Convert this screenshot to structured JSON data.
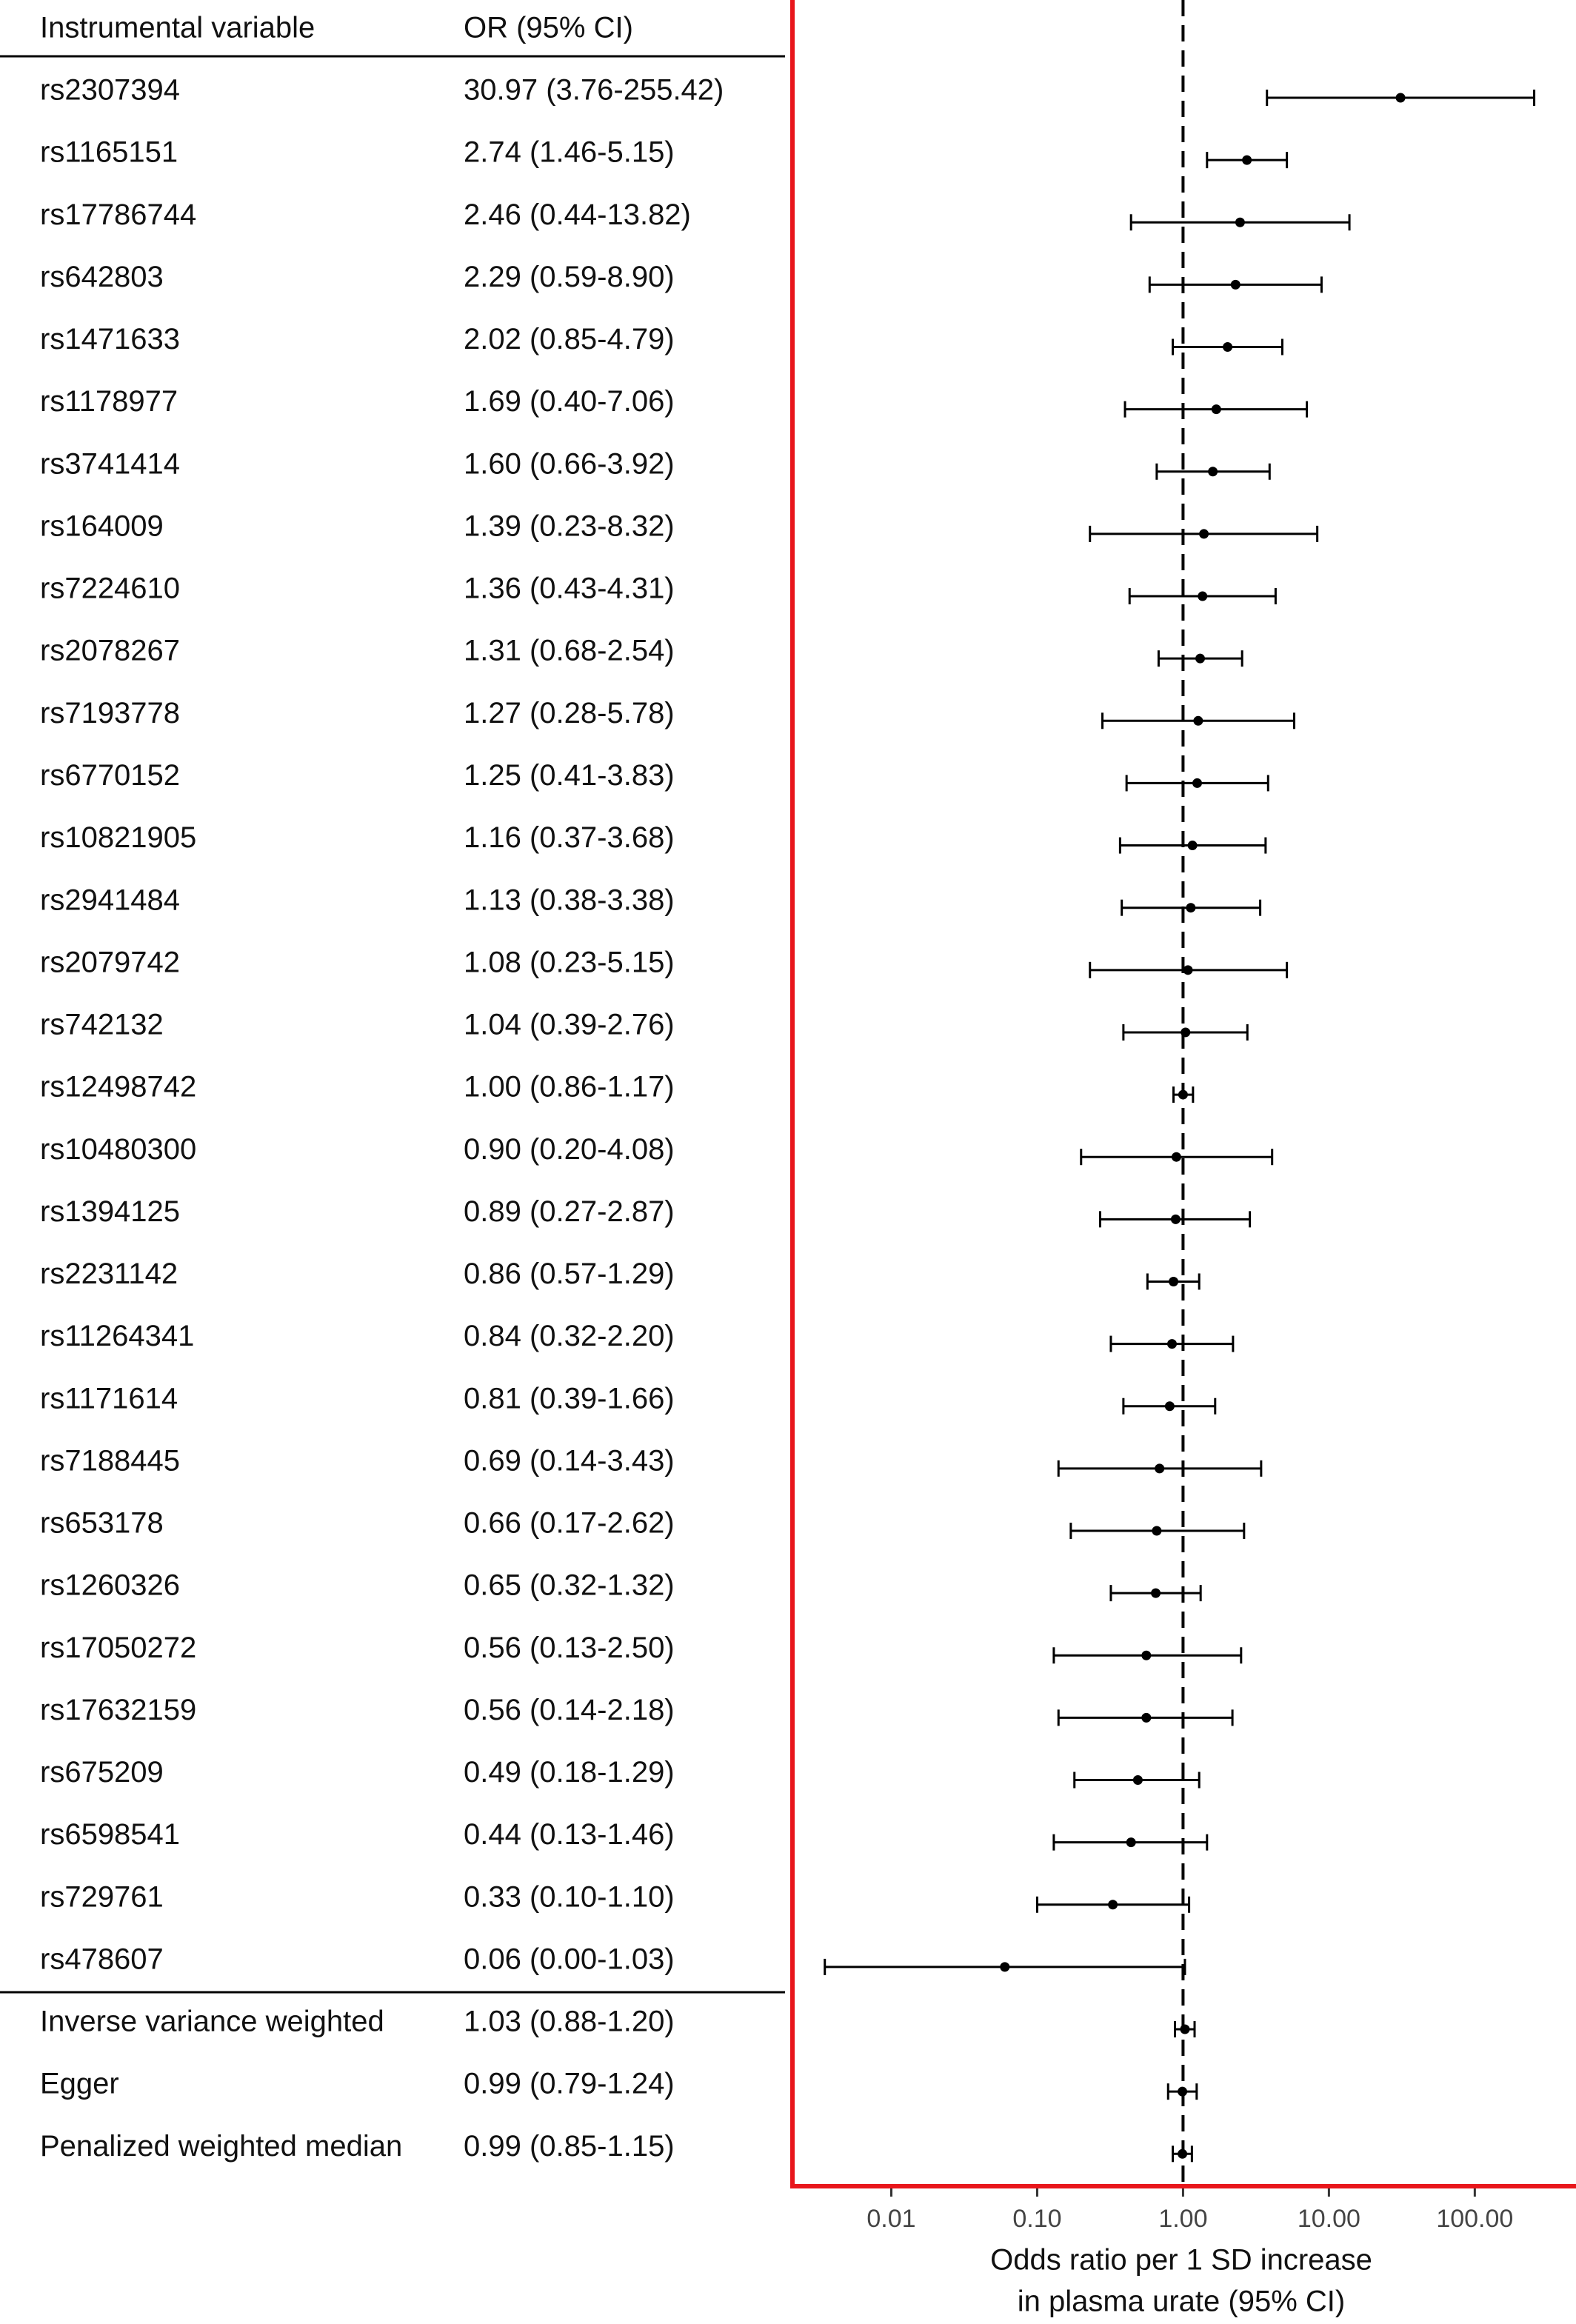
{
  "chart_data": {
    "type": "forest",
    "column_headers": [
      "Instrumental variable",
      "OR (95% CI)"
    ],
    "xlabel": [
      "Odds ratio per 1 SD increase",
      "in plasma urate (95% CI)"
    ],
    "log_x": true,
    "xlim": [
      0.0021,
      450
    ],
    "xticks": [
      0.01,
      {
        "value": 0.1,
        "label": "0.10"
      },
      {
        "value": 1,
        "label": "1.00"
      },
      {
        "value": 10,
        "label": "10.00"
      },
      {
        "value": 100,
        "label": "100.00"
      }
    ],
    "reference": 1,
    "axis_color": "#e8161b",
    "mark_color": "#000000",
    "sections": [
      {
        "categories": [
          "rs2307394",
          "rs1165151",
          "rs17786744",
          "rs642803",
          "rs1471633",
          "rs1178977",
          "rs3741414",
          "rs164009",
          "rs7224610",
          "rs2078267",
          "rs7193778",
          "rs6770152",
          "rs10821905",
          "rs2941484",
          "rs2079742",
          "rs742132",
          "rs12498742",
          "rs10480300",
          "rs1394125",
          "rs2231142",
          "rs11264341",
          "rs1171614",
          "rs7188445",
          "rs653178",
          "rs1260326",
          "rs17050272",
          "rs17632159",
          "rs675209",
          "rs6598541",
          "rs729761",
          "rs478607"
        ],
        "values": [
          30.97,
          2.74,
          2.46,
          2.29,
          2.02,
          1.69,
          1.6,
          1.39,
          1.36,
          1.31,
          1.27,
          1.25,
          1.16,
          1.13,
          1.08,
          1.04,
          1.0,
          0.9,
          0.89,
          0.86,
          0.84,
          0.81,
          0.69,
          0.66,
          0.65,
          0.56,
          0.56,
          0.49,
          0.44,
          0.33,
          0.06
        ],
        "lower": [
          3.76,
          1.46,
          0.44,
          0.59,
          0.85,
          0.4,
          0.66,
          0.23,
          0.43,
          0.68,
          0.28,
          0.41,
          0.37,
          0.38,
          0.23,
          0.39,
          0.86,
          0.2,
          0.27,
          0.57,
          0.32,
          0.39,
          0.14,
          0.17,
          0.32,
          0.13,
          0.14,
          0.18,
          0.13,
          0.1,
          0.0035
        ],
        "upper": [
          255.42,
          5.15,
          13.82,
          8.9,
          4.79,
          7.06,
          3.92,
          8.32,
          4.31,
          2.54,
          5.78,
          3.83,
          3.68,
          3.38,
          5.15,
          2.76,
          1.17,
          4.08,
          2.87,
          1.29,
          2.2,
          1.66,
          3.43,
          2.62,
          1.32,
          2.5,
          2.18,
          1.29,
          1.46,
          1.1,
          1.03
        ],
        "value_labels": [
          "30.97 (3.76-255.42)",
          "2.74 (1.46-5.15)",
          "2.46 (0.44-13.82)",
          "2.29 (0.59-8.90)",
          "2.02 (0.85-4.79)",
          "1.69 (0.40-7.06)",
          "1.60 (0.66-3.92)",
          "1.39 (0.23-8.32)",
          "1.36 (0.43-4.31)",
          "1.31 (0.68-2.54)",
          "1.27 (0.28-5.78)",
          "1.25 (0.41-3.83)",
          "1.16 (0.37-3.68)",
          "1.13 (0.38-3.38)",
          "1.08 (0.23-5.15)",
          "1.04 (0.39-2.76)",
          "1.00 (0.86-1.17)",
          "0.90 (0.20-4.08)",
          "0.89 (0.27-2.87)",
          "0.86 (0.57-1.29)",
          "0.84 (0.32-2.20)",
          "0.81 (0.39-1.66)",
          "0.69 (0.14-3.43)",
          "0.66 (0.17-2.62)",
          "0.65 (0.32-1.32)",
          "0.56 (0.13-2.50)",
          "0.56 (0.14-2.18)",
          "0.49 (0.18-1.29)",
          "0.44 (0.13-1.46)",
          "0.33 (0.10-1.10)",
          "0.06 (0.00-1.03)"
        ]
      },
      {
        "categories": [
          "Inverse variance weighted",
          "Egger",
          "Penalized weighted median"
        ],
        "values": [
          1.03,
          0.99,
          0.99
        ],
        "lower": [
          0.88,
          0.79,
          0.85
        ],
        "upper": [
          1.2,
          1.24,
          1.15
        ],
        "value_labels": [
          "1.03 (0.88-1.20)",
          "0.99 (0.79-1.24)",
          "0.99 (0.85-1.15)"
        ]
      }
    ]
  }
}
